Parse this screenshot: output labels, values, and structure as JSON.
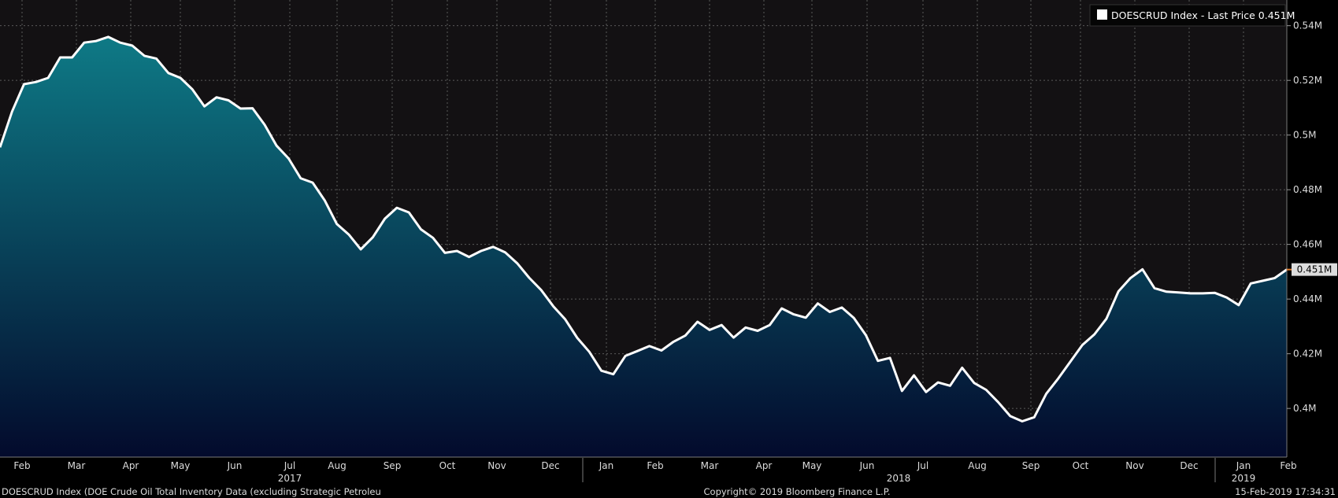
{
  "chart_data": {
    "type": "area",
    "ticker": "DOESCRUD Index",
    "legend": {
      "label": "DOESCRUD Index - Last Price 0.451M",
      "placement": "top-right"
    },
    "last_value_label": "0.451M",
    "y_axis": {
      "position": "right",
      "ticks": [
        0.4,
        0.42,
        0.44,
        0.46,
        0.48,
        0.5,
        0.52,
        0.54
      ],
      "tick_labels": [
        "0.4M",
        "0.42M",
        "0.44M",
        "0.46M",
        "0.48M",
        "0.5M",
        "0.52M",
        "0.54M"
      ],
      "ylim": [
        0.3822,
        0.5494
      ],
      "unit": "M"
    },
    "x_axis": {
      "month_labels": [
        "Feb",
        "Mar",
        "Apr",
        "May",
        "Jun",
        "Jul",
        "Aug",
        "Sep",
        "Oct",
        "Nov",
        "Dec",
        "Jan",
        "Feb",
        "Mar",
        "Apr",
        "May",
        "Jun",
        "Jul",
        "Aug",
        "Sep",
        "Oct",
        "Nov",
        "Dec",
        "Jan",
        "Feb"
      ],
      "year_labels": [
        "2017",
        "2018",
        "2019"
      ]
    },
    "grid": true,
    "colors": {
      "background": "#000000",
      "plot_background": "#131113",
      "line": "#ffffff",
      "fill_top": "#0e7a86",
      "fill_bottom": "#030a2c",
      "grid": "#5a5a5a",
      "text": "#dcdcdc"
    },
    "series": [
      {
        "values": [
          0.4955,
          0.5086,
          0.5186,
          0.5194,
          0.5209,
          0.5284,
          0.5284,
          0.5338,
          0.5344,
          0.5359,
          0.5338,
          0.5327,
          0.529,
          0.528,
          0.5227,
          0.5209,
          0.5167,
          0.5105,
          0.5138,
          0.5127,
          0.5097,
          0.5098,
          0.5038,
          0.4961,
          0.4914,
          0.4842,
          0.4826,
          0.4761,
          0.4675,
          0.4636,
          0.4582,
          0.4626,
          0.4694,
          0.4734,
          0.4717,
          0.4655,
          0.4624,
          0.4569,
          0.4576,
          0.4554,
          0.4576,
          0.4591,
          0.4571,
          0.4531,
          0.4478,
          0.4433,
          0.4374,
          0.4326,
          0.4258,
          0.4207,
          0.4138,
          0.4125,
          0.4192,
          0.421,
          0.4228,
          0.4212,
          0.4244,
          0.4267,
          0.4317,
          0.4287,
          0.4305,
          0.4259,
          0.4296,
          0.4284,
          0.4305,
          0.4366,
          0.4344,
          0.4332,
          0.4384,
          0.4353,
          0.4369,
          0.4331,
          0.4268,
          0.4174,
          0.4185,
          0.4064,
          0.4121,
          0.406,
          0.4095,
          0.4083,
          0.4149,
          0.4093,
          0.4068,
          0.4023,
          0.3972,
          0.3953,
          0.3968,
          0.4054,
          0.411,
          0.4171,
          0.4232,
          0.4271,
          0.4328,
          0.4428,
          0.4477,
          0.4509,
          0.444,
          0.4427,
          0.4424,
          0.4421,
          0.4421,
          0.4423,
          0.4406,
          0.4378,
          0.4457,
          0.4467,
          0.4477,
          0.4508
        ]
      }
    ],
    "notes": {
      "bottom_left": "DOESCRUD Index (DOE Crude Oil Total Inventory Data (excluding Strategic Petroleu",
      "bottom_center": "Copyright© 2019 Bloomberg Finance L.P.",
      "bottom_right": "15-Feb-2019 17:34:31"
    }
  }
}
